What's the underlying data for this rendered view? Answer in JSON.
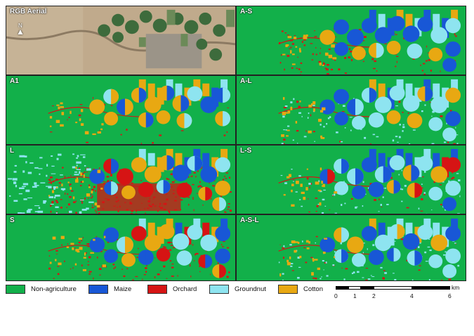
{
  "panels": [
    {
      "id": "rgb",
      "label": "RGB Aerial"
    },
    {
      "id": "as",
      "label": "A-S"
    },
    {
      "id": "a1",
      "label": "A1"
    },
    {
      "id": "al",
      "label": "A-L"
    },
    {
      "id": "l",
      "label": "L"
    },
    {
      "id": "ls",
      "label": "L-S"
    },
    {
      "id": "s",
      "label": "S"
    },
    {
      "id": "asl",
      "label": "A-S-L"
    }
  ],
  "north_label": "N",
  "colors": {
    "non_agriculture": "#12b04a",
    "maize": "#1857d6",
    "orchard": "#d61414",
    "groundnut": "#8ee4f0",
    "cotton": "#e8a812"
  },
  "legend": [
    {
      "key": "non_agriculture",
      "label": "Non-agriculture"
    },
    {
      "key": "maize",
      "label": "Maize"
    },
    {
      "key": "orchard",
      "label": "Orchard"
    },
    {
      "key": "groundnut",
      "label": "Groundnut"
    },
    {
      "key": "cotton",
      "label": "Cotton"
    }
  ],
  "scale": {
    "unit": "km",
    "ticks": [
      "0",
      "1",
      "2",
      "4",
      "6"
    ]
  }
}
